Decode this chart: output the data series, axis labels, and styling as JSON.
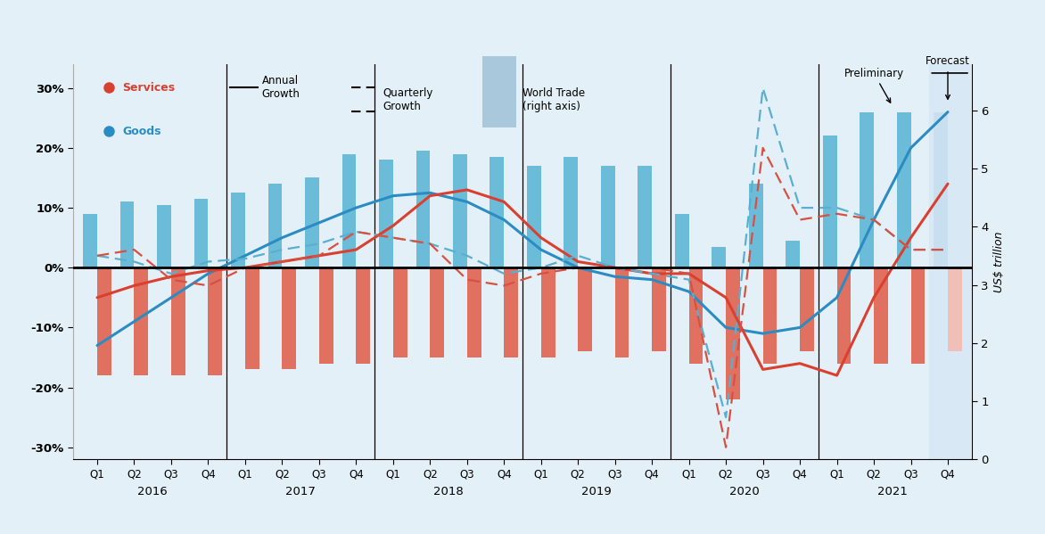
{
  "quarters": [
    "Q1",
    "Q2",
    "Q3",
    "Q4",
    "Q1",
    "Q2",
    "Q3",
    "Q4",
    "Q1",
    "Q2",
    "Q3",
    "Q4",
    "Q1",
    "Q2",
    "Q3",
    "Q4",
    "Q1",
    "Q2",
    "Q3",
    "Q4",
    "Q1",
    "Q2",
    "Q3",
    "Q4"
  ],
  "year_labels": [
    "2016",
    "2017",
    "2018",
    "2019",
    "2020",
    "2021"
  ],
  "year_centers": [
    1.5,
    5.5,
    9.5,
    13.5,
    17.5,
    21.5
  ],
  "year_dividers": [
    3.5,
    7.5,
    11.5,
    15.5,
    19.5
  ],
  "goods_bars": [
    9,
    11,
    10.5,
    11.5,
    12.5,
    14,
    15,
    19,
    18,
    19.5,
    19,
    18.5,
    17,
    18.5,
    17,
    17,
    9,
    3.5,
    14,
    4.5,
    22,
    26,
    26,
    26
  ],
  "services_bars": [
    -18,
    -18,
    -18,
    -18,
    -17,
    -17,
    -16,
    -16,
    -15,
    -15,
    -15,
    -15,
    -15,
    -14,
    -15,
    -14,
    -16,
    -22,
    -16,
    -14,
    -16,
    -16,
    -16,
    -14
  ],
  "goods_annual_line": [
    -13,
    -9,
    -5,
    -1,
    2,
    5,
    7.5,
    10,
    12,
    12.5,
    11,
    8,
    3,
    0,
    -1.5,
    -2,
    -4,
    -10,
    -11,
    -10,
    -5,
    8,
    20,
    26
  ],
  "services_annual_line": [
    -5,
    -3,
    -1.5,
    -0.5,
    0,
    1,
    2,
    3,
    7,
    12,
    13,
    11,
    5,
    1,
    0,
    -1,
    -1,
    -5,
    -17,
    -16,
    -18,
    -5,
    5,
    14
  ],
  "goods_qtr_dashed": [
    2,
    1,
    -1,
    1,
    1.5,
    3,
    4,
    6,
    5,
    4,
    2,
    -1,
    0,
    2,
    0,
    -1,
    -2,
    -25,
    30,
    10,
    10,
    8,
    3,
    3
  ],
  "services_qtr_dashed": [
    2,
    3,
    -2,
    -3,
    0,
    1,
    2,
    6,
    5,
    4,
    -2,
    -3,
    -1,
    0,
    0,
    0,
    -1,
    -30,
    20,
    8,
    9,
    8,
    3,
    3
  ],
  "bg_color": "#e4f0f8",
  "goods_bar_color": "#6bbcd8",
  "services_bar_color": "#e07060",
  "goods_line_color": "#2b8cc4",
  "services_line_color": "#d94030",
  "goods_dashed_color": "#5aaed0",
  "services_dashed_color": "#d85040",
  "forecast_bar_goods_color": "#c8dff0",
  "forecast_bar_services_color": "#f0c0b8",
  "ylim_left": [
    -32,
    34
  ],
  "ylim_right": [
    0,
    6.8
  ],
  "yticks_left": [
    -30,
    -20,
    -10,
    0,
    10,
    20,
    30
  ],
  "ytick_labels_left": [
    "-30%",
    "-20%",
    "-10%",
    "0%",
    "10%",
    "20%",
    "30%"
  ],
  "yticks_right": [
    0,
    1,
    2,
    3,
    4,
    5,
    6
  ],
  "bar_width": 0.38
}
